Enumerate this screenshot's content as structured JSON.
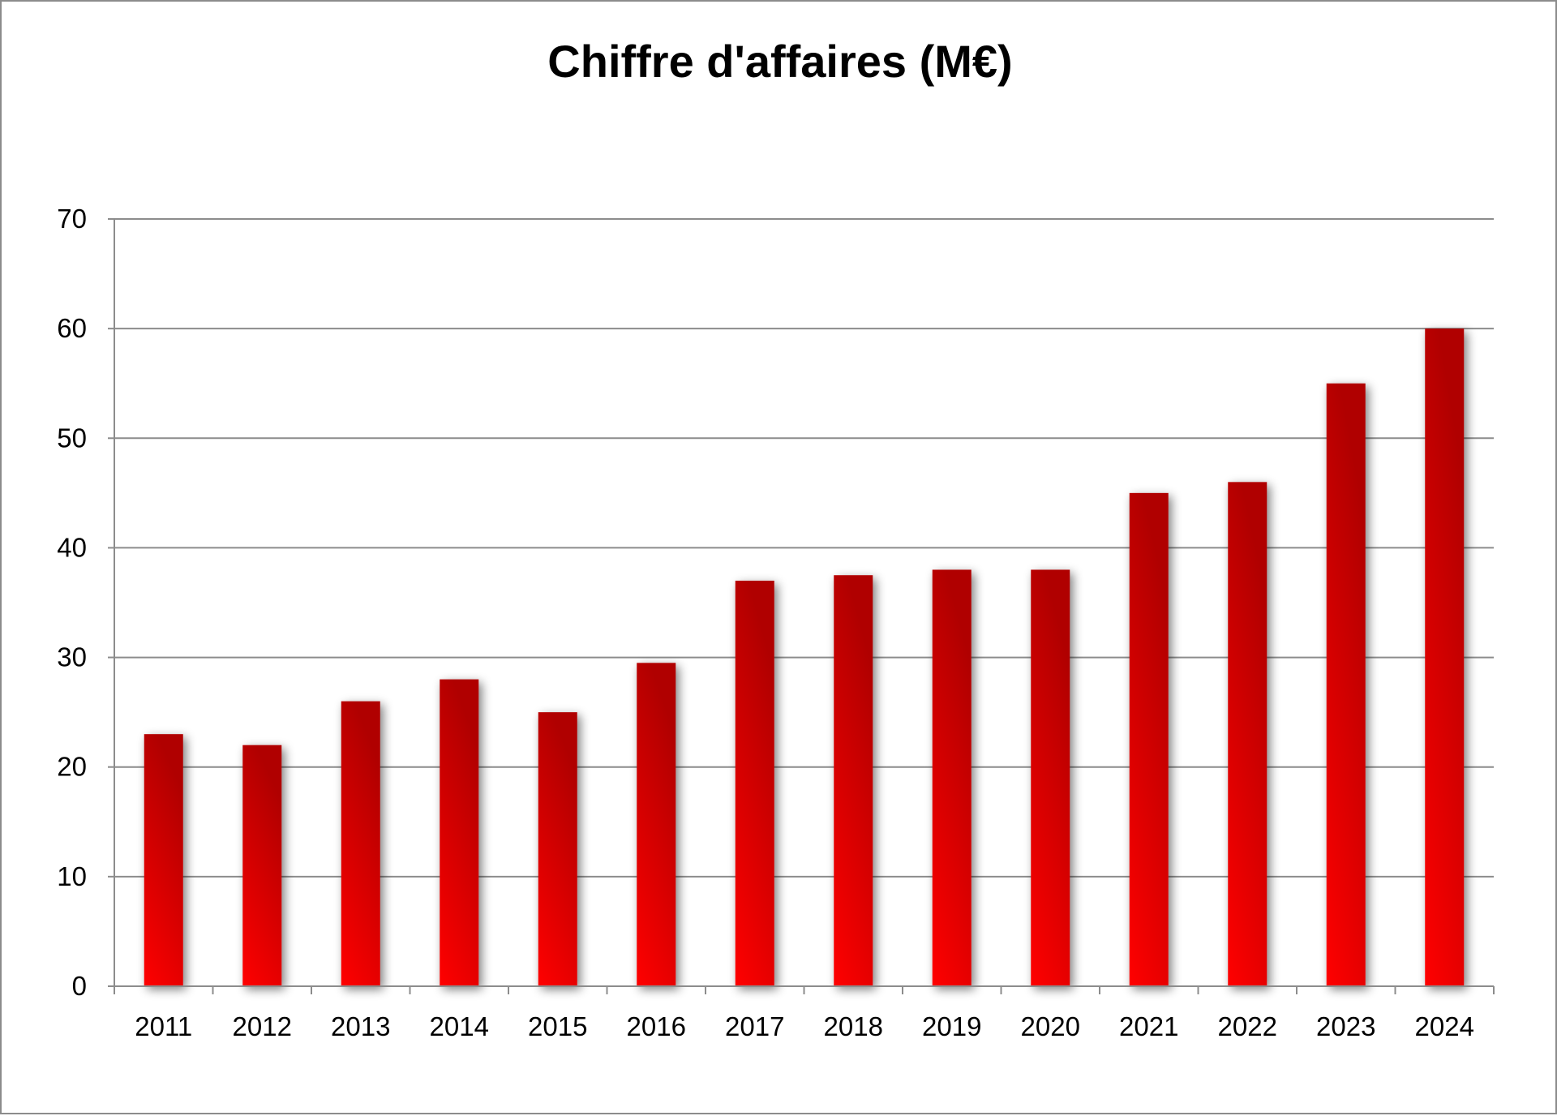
{
  "chart_data": {
    "type": "bar",
    "title": "Chiffre d'affaires (M€)",
    "xlabel": "",
    "ylabel": "",
    "categories": [
      "2011",
      "2012",
      "2013",
      "2014",
      "2015",
      "2016",
      "2017",
      "2018",
      "2019",
      "2020",
      "2021",
      "2022",
      "2023",
      "2024"
    ],
    "values": [
      23,
      22,
      26,
      28,
      25,
      29.5,
      37,
      37.5,
      38,
      38,
      45,
      46,
      55,
      60
    ],
    "ylim": [
      0,
      70
    ],
    "yticks": [
      "0",
      "10",
      "20",
      "30",
      "40",
      "50",
      "60",
      "70"
    ],
    "grid": true,
    "legend": "none",
    "colors": {
      "bar_light": "#ff0000",
      "bar_dark": "#b00000",
      "gridline": "#8c8c8c",
      "axis": "#8c8c8c",
      "frame": "#8c8c8c"
    }
  }
}
